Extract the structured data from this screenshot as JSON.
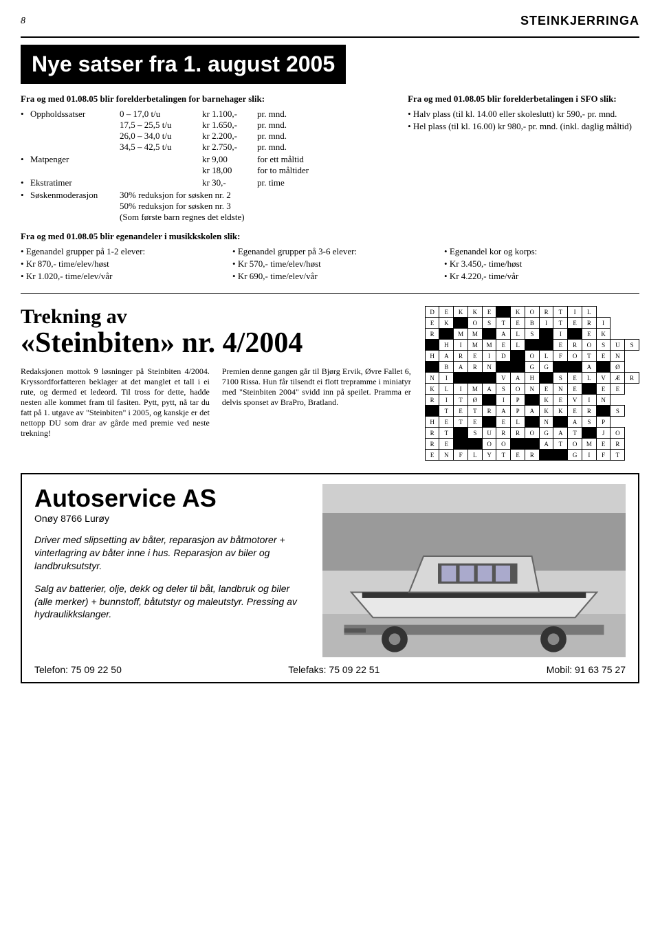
{
  "page_number": "8",
  "masthead": "STEINKJERRINGA",
  "main_title": "Nye satser fra 1. august 2005",
  "barnehage": {
    "heading": "Fra og med 01.08.05 blir forelderbetalingen for barnehager slik:",
    "opphold_label": "Oppholdssatser",
    "tiers": [
      {
        "range": "0 – 17,0 t/u",
        "price": "kr 1.100,-",
        "per": "pr. mnd."
      },
      {
        "range": "17,5 – 25,5 t/u",
        "price": "kr 1.650,-",
        "per": "pr. mnd."
      },
      {
        "range": "26,0 – 34,0 t/u",
        "price": "kr 2.200,-",
        "per": "pr. mnd."
      },
      {
        "range": "34,5 – 42,5 t/u",
        "price": "kr 2.750,-",
        "per": "pr. mnd."
      }
    ],
    "matpenger_label": "Matpenger",
    "matpenger_rows": [
      {
        "range": "",
        "price": "kr 9,00",
        "per": "for ett måltid"
      },
      {
        "range": "",
        "price": "kr 18,00",
        "per": "for to måltider"
      }
    ],
    "ekstra_label": "Ekstratimer",
    "ekstra_row": {
      "range": "",
      "price": "kr 30,-",
      "per": "pr. time"
    },
    "sosken_label": "Søskenmoderasjon",
    "sosken_lines": [
      "30% reduksjon for søsken nr. 2",
      "50% reduksjon for søsken nr. 3",
      "(Som første barn regnes det eldste)"
    ]
  },
  "sfo": {
    "heading": "Fra og med 01.08.05 blir forelder­betalingen i SFO slik:",
    "items": [
      "Halv plass (til kl. 14.00 eller skoleslutt) kr 590,- pr. mnd.",
      "Hel plass (til kl. 16.00) kr 980,- pr. mnd. (inkl. daglig måltid)"
    ]
  },
  "musikk": {
    "heading": "Fra og med 01.08.05 blir egenandeler i musikkskolen slik:",
    "col1_title": "Egenandel grupper på 1-2 elever:",
    "col1_items": [
      "Kr 870,- time/elev/høst",
      "Kr 1.020,- time/elev/vår"
    ],
    "col2_title": "Egenandel grupper på 3-6 elever:",
    "col2_items": [
      "Kr 570,- time/elev/høst",
      "Kr 690,- time/elev/vår"
    ],
    "col3_title": "Egenandel kor og korps:",
    "col3_items": [
      "Kr 3.450,- time/høst",
      "Kr 4.220,- time/vår"
    ]
  },
  "steinbiten": {
    "title_l1": "Trekning av",
    "title_l2": "«Steinbiten» nr. 4/2004",
    "para1": "Redaksjonen mottok 9 løsninger på Steinbiten 4/2004. Kryssordfor­fatteren beklager at det manglet et tall i ei rute, og dermed et ledeord. Til tross for dette, hadde nesten alle kommet fram til fasiten. Pytt, pytt, nå tar du fatt på 1. utgave av \"Steinbiten\" i 2005, og kanskje er det nettopp DU som drar av gårde med premie ved neste trekning!",
    "para2": "Premien denne gangen går til Bjørg Ervik, Øvre Fallet 6, 7100 Rissa. Hun får tilsendt ei flott tre­pramme i miniatyr med \"Steinbiten 2004\" svidd inn på speilet. Pram­ma er delvis sponset av BraPro, Bratland."
  },
  "crossword": {
    "rows": [
      [
        "D",
        "E",
        "K",
        "K",
        "E",
        "",
        "K",
        "O",
        "R",
        "T",
        "I",
        "L"
      ],
      [
        "E",
        "K",
        "",
        "O",
        "S",
        "T",
        "E",
        "B",
        "I",
        "T",
        "E",
        "R",
        "I"
      ],
      [
        "R",
        "",
        "M",
        "M",
        "",
        "A",
        "L",
        "S",
        "",
        "I",
        "",
        "E",
        "K"
      ],
      [
        "",
        "H",
        "I",
        "M",
        "M",
        "E",
        "L",
        "",
        "",
        "E",
        "R",
        "O",
        "S",
        "U",
        "S"
      ],
      [
        "H",
        "A",
        "R",
        "E",
        "I",
        "D",
        "",
        "O",
        "L",
        "F",
        "O",
        "T",
        "E",
        "N"
      ],
      [
        "",
        "B",
        "A",
        "R",
        "N",
        "",
        "",
        "G",
        "G",
        "",
        "",
        "A",
        "",
        "Ø"
      ],
      [
        "N",
        "I",
        "",
        "",
        "",
        "V",
        "A",
        "H",
        "",
        "S",
        "E",
        "L",
        "V",
        "Æ",
        "R"
      ],
      [
        "K",
        "L",
        "I",
        "M",
        "A",
        "S",
        "O",
        "N",
        "E",
        "N",
        "E",
        "",
        "E",
        "E"
      ],
      [
        "R",
        "I",
        "T",
        "Ø",
        "",
        "I",
        "P",
        "",
        "K",
        "E",
        "V",
        "I",
        "N"
      ],
      [
        "",
        "T",
        "E",
        "T",
        "R",
        "A",
        "P",
        "A",
        "K",
        "K",
        "E",
        "R",
        "",
        "S"
      ],
      [
        "H",
        "E",
        "T",
        "E",
        "",
        "E",
        "L",
        "",
        "N",
        "",
        "A",
        "S",
        "P"
      ],
      [
        "R",
        "T",
        "",
        "S",
        "U",
        "R",
        "R",
        "O",
        "G",
        "A",
        "T",
        "",
        "J",
        "O"
      ],
      [
        "R",
        "E",
        "",
        "",
        "O",
        "O",
        "",
        "",
        "A",
        "T",
        "O",
        "M",
        "E",
        "R"
      ],
      [
        "E",
        "N",
        "F",
        "L",
        "Y",
        "T",
        "E",
        "R",
        "",
        "",
        "G",
        "I",
        "F",
        "T"
      ]
    ]
  },
  "ad": {
    "company": "Autoservice AS",
    "address": "Onøy 8766 Lurøy",
    "p1": "Driver med slipsetting av båter, reparasjon av båtmotorer + vinterlagring av båter inne i hus. Reparasjon av biler og landbruksutstyr.",
    "p2": "Salg av batterier, olje, dekk og deler til båt, landbruk og biler (alle merker) + bunnstoff, båtutstyr og maleutstyr. Pressing av hydraulikkslanger.",
    "tel": "Telefon: 75 09 22 50",
    "fax": "Telefaks: 75 09 22 51",
    "mob": "Mobil: 91 63 75 27"
  }
}
